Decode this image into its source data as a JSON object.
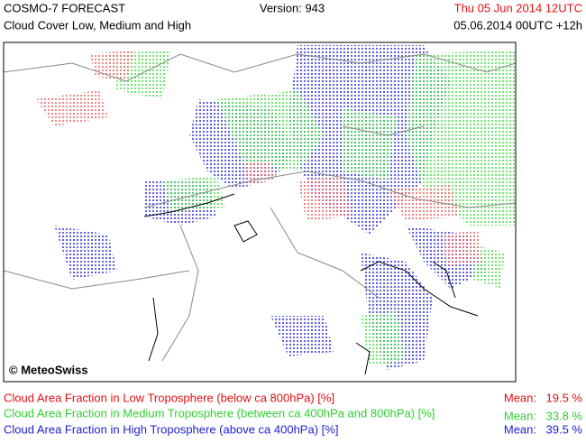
{
  "header": {
    "title": "COSMO-7 FORECAST",
    "subtitle": "Cloud Cover Low, Medium and High",
    "version": "Version: 943",
    "valid_time": "Thu 05 Jun 2014 12UTC",
    "run_time": "05.06.2014 00UTC +12h"
  },
  "map": {
    "credit": "© MeteoSwiss"
  },
  "legend": [
    {
      "label": "Cloud Area Fraction in Low Troposphere (below ca 800hPa) [%]",
      "mean_label": "Mean:",
      "mean": "19.5 %"
    },
    {
      "label": "Cloud Area Fraction in Medium Troposphere (between ca 400hPa and 800hPa) [%]",
      "mean_label": "Mean:",
      "mean": "33.8 %"
    },
    {
      "label": "Cloud Area Fraction in High Troposphere (above ca 400hPa) [%]",
      "mean_label": "Mean:",
      "mean": "39.5 %"
    }
  ]
}
